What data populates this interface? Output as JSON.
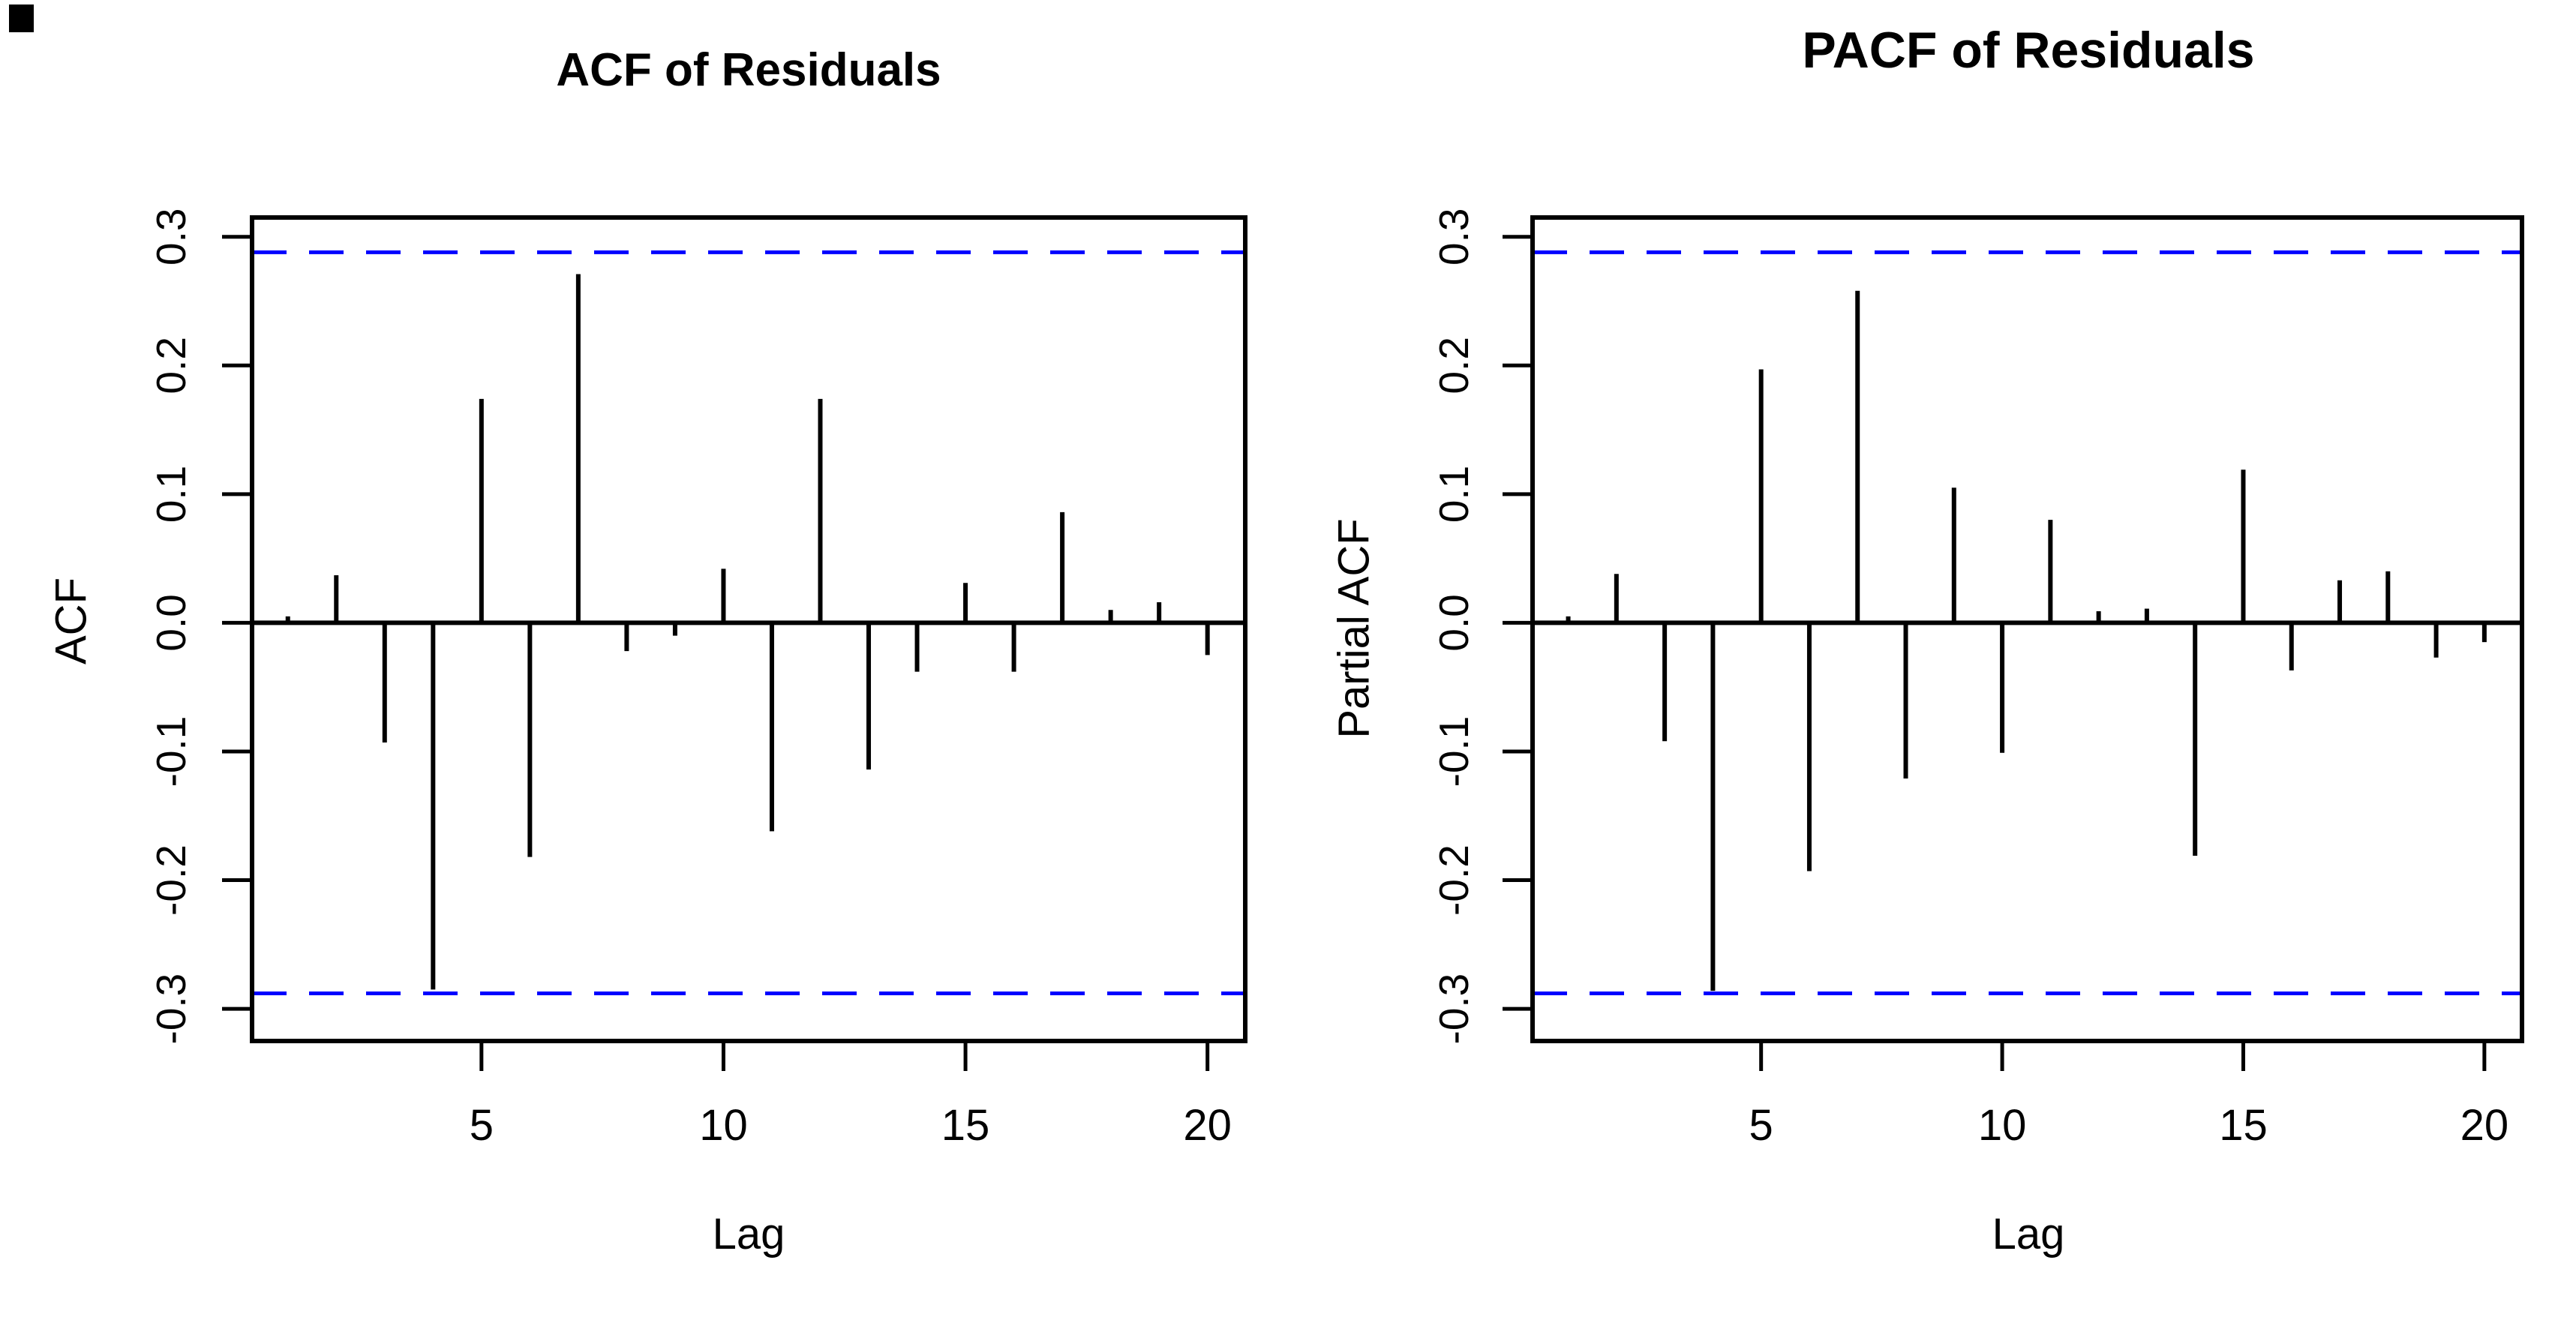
{
  "figure": {
    "background": "#ffffff",
    "corner_mark_color": "#000000",
    "spike_color": "#000000",
    "conf_line_color": "#0000ff",
    "axis_color": "#000000"
  },
  "chart_data": [
    {
      "id": "acf",
      "type": "bar",
      "subtype": "stem-acf",
      "title": "ACF of Residuals",
      "xlabel": "Lag",
      "ylabel": "ACF",
      "lags": [
        1,
        2,
        3,
        4,
        5,
        6,
        7,
        8,
        9,
        10,
        11,
        12,
        13,
        14,
        15,
        16,
        17,
        18,
        19,
        20
      ],
      "values": [
        0.005,
        0.037,
        -0.093,
        -0.285,
        0.174,
        -0.182,
        0.271,
        -0.022,
        -0.01,
        0.042,
        -0.162,
        0.174,
        -0.114,
        -0.038,
        0.031,
        -0.038,
        0.086,
        0.01,
        0.016,
        -0.025
      ],
      "conf_level": 0.288,
      "conf_style": "dashed",
      "xticks": [
        5,
        10,
        15,
        20
      ],
      "xtick_labels": [
        "5",
        "10",
        "15",
        "20"
      ],
      "yticks": [
        0.3,
        0.2,
        0.1,
        0.0,
        -0.1,
        -0.2,
        -0.3
      ],
      "ytick_labels": [
        "0.3",
        "0.2",
        "0.1",
        "0.0",
        "-0.1",
        "-0.2",
        "-0.3"
      ],
      "xlim": [
        0.26,
        20.78
      ],
      "ylim": [
        -0.325,
        0.315
      ],
      "grid": false,
      "legend_position": "none"
    },
    {
      "id": "pacf",
      "type": "bar",
      "subtype": "stem-pacf",
      "title": "PACF of Residuals",
      "xlabel": "Lag",
      "ylabel": "Partial ACF",
      "lags": [
        1,
        2,
        3,
        4,
        5,
        6,
        7,
        8,
        9,
        10,
        11,
        12,
        13,
        14,
        15,
        16,
        17,
        18,
        19,
        20
      ],
      "values": [
        0.005,
        0.038,
        -0.092,
        -0.286,
        0.197,
        -0.193,
        0.258,
        -0.121,
        0.105,
        -0.101,
        0.08,
        0.009,
        0.011,
        -0.181,
        0.119,
        -0.037,
        0.033,
        0.04,
        -0.027,
        -0.015
      ],
      "conf_level": 0.288,
      "conf_style": "dashed",
      "xticks": [
        5,
        10,
        15,
        20
      ],
      "xtick_labels": [
        "5",
        "10",
        "15",
        "20"
      ],
      "yticks": [
        0.3,
        0.2,
        0.1,
        0.0,
        -0.1,
        -0.2,
        -0.3
      ],
      "ytick_labels": [
        "0.3",
        "0.2",
        "0.1",
        "0.0",
        "-0.1",
        "-0.2",
        "-0.3"
      ],
      "xlim": [
        0.26,
        20.78
      ],
      "ylim": [
        -0.325,
        0.315
      ],
      "grid": false,
      "legend_position": "none"
    }
  ]
}
